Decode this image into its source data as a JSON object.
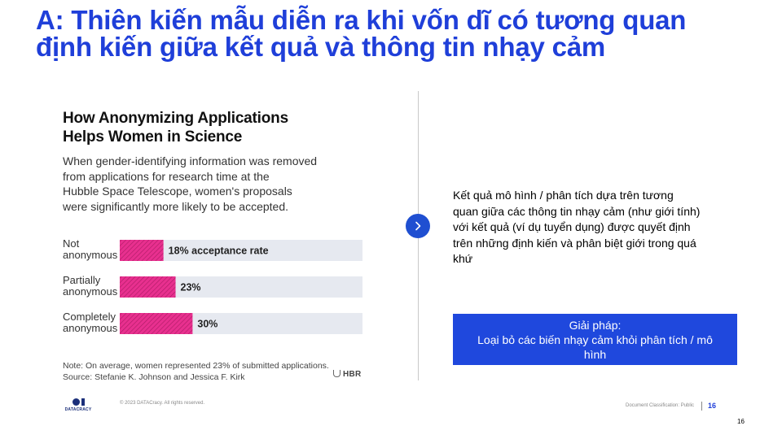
{
  "slide": {
    "title_lines": [
      "A: Thiên kiến mẫu diễn ra khi vốn dĩ có tương quan",
      "định kiến giữa kết quả và thông tin nhạy cảm"
    ]
  },
  "figure": {
    "title_lines": [
      "How Anonymizing Applications",
      "Helps Women in Science"
    ],
    "description_lines": [
      "When gender-identifying information was removed",
      "from applications for research time at the",
      "Hubble Space Telescope, women's proposals",
      "were significantly more likely to be accepted."
    ],
    "note_lines": [
      "Note: On average, women represented 23% of submitted applications.",
      "Source: Stefanie K. Johnson and Jessica F. Kirk"
    ],
    "publisher": "HBR"
  },
  "chart_data": {
    "type": "bar",
    "orientation": "horizontal",
    "categories": [
      [
        "Not",
        "anonymous"
      ],
      [
        "Partially",
        "anonymous"
      ],
      [
        "Completely",
        "anonymous"
      ]
    ],
    "values": [
      18,
      23,
      30
    ],
    "data_labels": [
      "18% acceptance rate",
      "23%",
      "30%"
    ],
    "unit": "%",
    "xlim": [
      0,
      100
    ],
    "grid": false,
    "colors": {
      "bar": "#e8308f",
      "hatch": "#b01c67",
      "track": "#e6e9f0"
    }
  },
  "explanation": {
    "lines": [
      "Kết quả mô hình / phân tích dựa trên tương",
      "quan giữa các thông tin nhạy cảm (như giới tính)",
      "với kết quả (ví dụ tuyển dụng) được quyết định",
      "trên những định kiến và phân biệt giới trong quá",
      "khứ"
    ]
  },
  "solution": {
    "lines": [
      "Giải pháp:",
      "Loại bỏ các biến nhạy cảm khỏi phân tích / mô",
      "hình"
    ]
  },
  "footer": {
    "logo_text": "DATACRACY",
    "copyright": "© 2023 DATACracy. All rights reserved.",
    "classification": "Document Classification: Public",
    "page_number": "16",
    "corner_page_number": "16"
  },
  "colors": {
    "title_blue": "#1f3fd9",
    "accent_blue": "#1f48dd",
    "button_blue": "#1f4fd1"
  },
  "icons": {
    "next_button": "chevron-right-icon",
    "publisher": "hbr-shield-icon"
  }
}
